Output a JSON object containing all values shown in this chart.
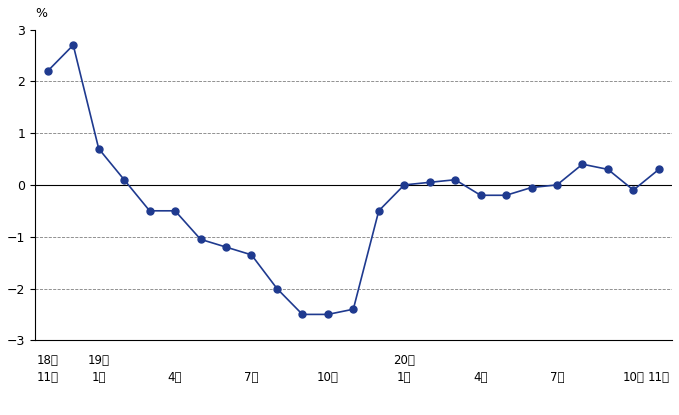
{
  "title": "",
  "ylabel": "%",
  "ylim": [
    -3,
    3
  ],
  "yticks": [
    -3,
    -2,
    -1,
    0,
    1,
    2,
    3
  ],
  "line_color": "#1f3a8f",
  "marker_color": "#1f3a8f",
  "background_color": "#ffffff",
  "values": [
    2.2,
    2.7,
    0.7,
    0.1,
    -0.5,
    -0.5,
    -1.05,
    -1.2,
    -1.35,
    -2.0,
    -2.5,
    -2.5,
    -2.4,
    -0.5,
    0.0,
    0.05,
    0.1,
    -0.2,
    -0.2,
    -0.05,
    0.0,
    0.4,
    0.3,
    -0.1,
    0.3
  ],
  "tick_info": [
    [
      0,
      "18年",
      "11月"
    ],
    [
      2,
      "19年",
      "1月"
    ],
    [
      5,
      "",
      "4月"
    ],
    [
      8,
      "",
      "7月"
    ],
    [
      11,
      "",
      "10月"
    ],
    [
      14,
      "20年",
      "1月"
    ],
    [
      17,
      "",
      "4月"
    ],
    [
      20,
      "",
      "7月"
    ],
    [
      23,
      "",
      "10月"
    ],
    [
      24,
      "",
      "11月"
    ]
  ]
}
